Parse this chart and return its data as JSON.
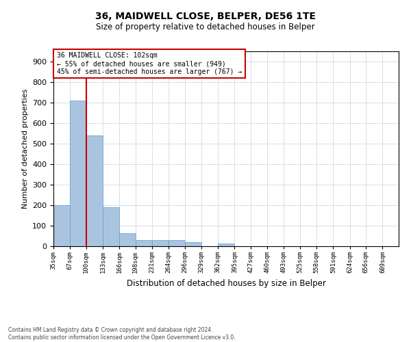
{
  "title": "36, MAIDWELL CLOSE, BELPER, DE56 1TE",
  "subtitle": "Size of property relative to detached houses in Belper",
  "xlabel": "Distribution of detached houses by size in Belper",
  "ylabel": "Number of detached properties",
  "footer_line1": "Contains HM Land Registry data © Crown copyright and database right 2024.",
  "footer_line2": "Contains public sector information licensed under the Open Government Licence v3.0.",
  "annotation_line1": "36 MAIDWELL CLOSE: 102sqm",
  "annotation_line2": "← 55% of detached houses are smaller (949)",
  "annotation_line3": "45% of semi-detached houses are larger (767) →",
  "bar_color": "#aac4e0",
  "bar_edge_color": "#5a9ec9",
  "redline_color": "#cc0000",
  "annotation_box_edge": "#cc0000",
  "background_color": "#ffffff",
  "grid_color": "#d0d8e8",
  "bins": [
    "35sqm",
    "67sqm",
    "100sqm",
    "133sqm",
    "166sqm",
    "198sqm",
    "231sqm",
    "264sqm",
    "296sqm",
    "329sqm",
    "362sqm",
    "395sqm",
    "427sqm",
    "460sqm",
    "493sqm",
    "525sqm",
    "558sqm",
    "591sqm",
    "624sqm",
    "656sqm",
    "689sqm"
  ],
  "bin_edges": [
    35,
    67,
    100,
    133,
    166,
    198,
    231,
    264,
    296,
    329,
    362,
    395,
    427,
    460,
    493,
    525,
    558,
    591,
    624,
    656,
    689
  ],
  "bar_heights": [
    200,
    710,
    540,
    190,
    65,
    30,
    30,
    30,
    20,
    0,
    15,
    0,
    0,
    0,
    0,
    0,
    0,
    0,
    0,
    0
  ],
  "red_line_x": 100,
  "ylim": [
    0,
    950
  ],
  "yticks": [
    0,
    100,
    200,
    300,
    400,
    500,
    600,
    700,
    800,
    900
  ]
}
